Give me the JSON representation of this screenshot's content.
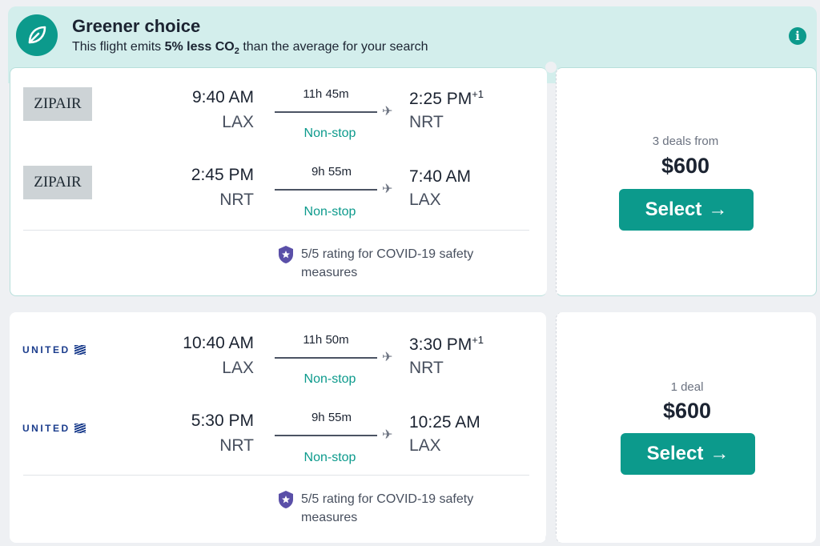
{
  "banner": {
    "title": "Greener choice",
    "subtitle_pre": "This flight emits ",
    "subtitle_bold": "5% less CO",
    "subtitle_sub": "2",
    "subtitle_post": " than the average for your search",
    "info_glyph": "i"
  },
  "results": [
    {
      "legs": [
        {
          "airline": "ZIPAIR",
          "depart_time": "9:40 AM",
          "depart_airport": "LAX",
          "duration": "11h 45m",
          "stops": "Non-stop",
          "arrive_time": "2:25 PM",
          "day_offset": "+1",
          "arrive_airport": "NRT"
        },
        {
          "airline": "ZIPAIR",
          "depart_time": "2:45 PM",
          "depart_airport": "NRT",
          "duration": "9h 55m",
          "stops": "Non-stop",
          "arrive_time": "7:40 AM",
          "day_offset": "",
          "arrive_airport": "LAX"
        }
      ],
      "covid_rating": "5/5 rating for COVID-19 safety measures",
      "deals": "3 deals from",
      "price": "$600",
      "select_label": "Select"
    },
    {
      "legs": [
        {
          "airline": "UNITED",
          "depart_time": "10:40 AM",
          "depart_airport": "LAX",
          "duration": "11h 50m",
          "stops": "Non-stop",
          "arrive_time": "3:30 PM",
          "day_offset": "+1",
          "arrive_airport": "NRT"
        },
        {
          "airline": "UNITED",
          "depart_time": "5:30 PM",
          "depart_airport": "NRT",
          "duration": "9h 55m",
          "stops": "Non-stop",
          "arrive_time": "10:25 AM",
          "day_offset": "",
          "arrive_airport": "LAX"
        }
      ],
      "covid_rating": "5/5 rating for COVID-19 safety measures",
      "deals": "1 deal",
      "price": "$600",
      "select_label": "Select"
    }
  ],
  "colors": {
    "accent": "#0c9a8c",
    "banner_bg": "#d3eeec",
    "page_bg": "#eef0f3"
  },
  "icons": {
    "leaf": "leaf-icon",
    "info": "info-icon",
    "plane": "plane-icon",
    "shield": "shield-icon",
    "arrow": "arrow-right-icon"
  }
}
